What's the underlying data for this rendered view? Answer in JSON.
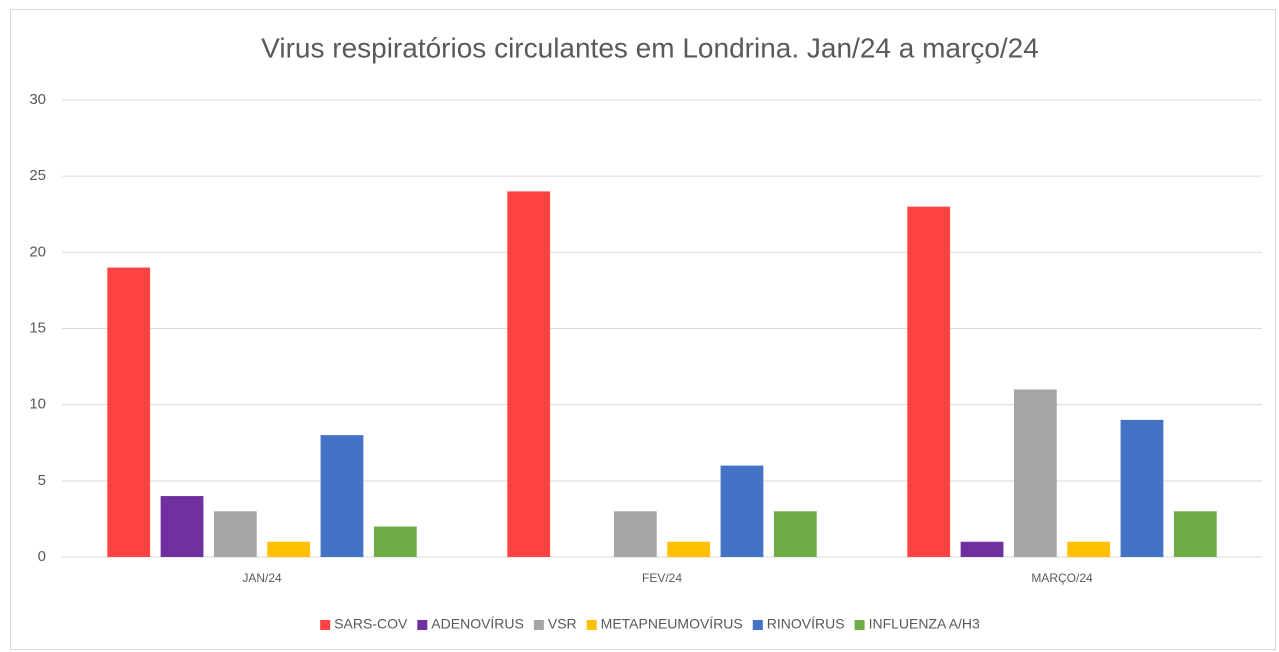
{
  "chart_data": {
    "type": "bar",
    "title": "Virus respiratórios circulantes em Londrina. Jan/24 a março/24",
    "categories": [
      "JAN/24",
      "FEV/24",
      "MARÇO/24"
    ],
    "series": [
      {
        "name": "SARS-COV",
        "color": "#ff4343",
        "values": [
          19,
          24,
          23
        ]
      },
      {
        "name": "ADENOVÍRUS",
        "color": "#7030a0",
        "values": [
          4,
          0,
          1
        ]
      },
      {
        "name": "VSR",
        "color": "#a5a5a5",
        "values": [
          3,
          3,
          11
        ]
      },
      {
        "name": "METAPNEUMOVÍRUS",
        "color": "#ffc000",
        "values": [
          1,
          1,
          1
        ]
      },
      {
        "name": "RINOVÍRUS",
        "color": "#4472c4",
        "values": [
          8,
          6,
          9
        ]
      },
      {
        "name": "INFLUENZA A/H3",
        "color": "#70ad47",
        "values": [
          2,
          3,
          3
        ]
      }
    ],
    "ylim": [
      0,
      30
    ],
    "yticks": [
      0,
      5,
      10,
      15,
      20,
      25,
      30
    ],
    "grid": true,
    "legend": "bottom"
  }
}
